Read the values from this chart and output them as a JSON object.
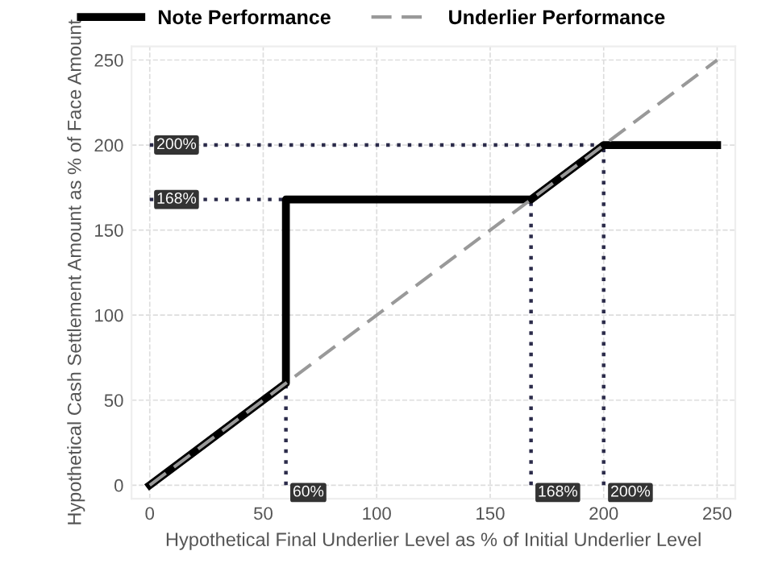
{
  "chart_data": {
    "type": "line",
    "xlabel": "Hypothetical Final Underlier Level as % of Initial Underlier Level",
    "ylabel": "Hypothetical Cash Settlement Amount as % of Face Amount",
    "xlim": [
      -8,
      258
    ],
    "ylim": [
      -8,
      258
    ],
    "xticks": [
      0,
      50,
      100,
      150,
      200,
      250
    ],
    "yticks": [
      0,
      50,
      100,
      150,
      200,
      250
    ],
    "grid": true,
    "legend": "top",
    "series": [
      {
        "name": "Note Performance",
        "color": "#000000",
        "line_style": "solid",
        "x": [
          0,
          60,
          60,
          168,
          200,
          250
        ],
        "values": [
          0,
          60,
          168,
          168,
          200,
          200
        ]
      },
      {
        "name": "Underlier Performance",
        "color": "#999999",
        "line_style": "dashed",
        "x": [
          0,
          250
        ],
        "values": [
          0,
          250
        ]
      },
      {
        "color": "#2b2b4a",
        "line_style": "dotted",
        "x": [
          0,
          200
        ],
        "values": [
          200,
          200
        ]
      },
      {
        "color": "#2b2b4a",
        "line_style": "dotted",
        "x": [
          0,
          60
        ],
        "values": [
          168,
          168
        ]
      },
      {
        "color": "#2b2b4a",
        "line_style": "dotted",
        "x": [
          60,
          60
        ],
        "values": [
          0,
          60
        ]
      },
      {
        "color": "#2b2b4a",
        "line_style": "dotted",
        "x": [
          168,
          168
        ],
        "values": [
          0,
          168
        ]
      },
      {
        "color": "#2b2b4a",
        "line_style": "dotted",
        "x": [
          200,
          200
        ],
        "values": [
          0,
          200
        ]
      }
    ],
    "annotations": [
      {
        "text": "200%",
        "x": 0,
        "y": 200
      },
      {
        "text": "168%",
        "x": 0,
        "y": 168
      },
      {
        "text": "60%",
        "x": 60,
        "y": 0
      },
      {
        "text": "168%",
        "x": 168,
        "y": 0
      },
      {
        "text": "200%",
        "x": 200,
        "y": 0
      }
    ]
  }
}
